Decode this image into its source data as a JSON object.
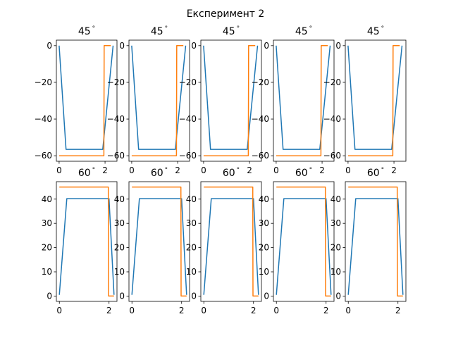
{
  "title": "Експеримент 2",
  "colors": {
    "series_0": "#1f77b4",
    "series_1": "#ff7f0e"
  },
  "chart_data": [
    {
      "row": 1,
      "type": "line",
      "title": "45",
      "title_degree": "°",
      "xlim": [
        -0.12,
        2.52
      ],
      "ylim": [
        -63,
        3
      ],
      "xticks": [
        0,
        2
      ],
      "xticklabels": [
        "0",
        "2"
      ],
      "yticks": [
        0,
        -20,
        -40,
        -60
      ],
      "yticklabels": [
        "0",
        "−20",
        "−40",
        "−60"
      ],
      "series": [
        {
          "values": [
            [
              0,
              0
            ],
            [
              0.3,
              -56.5
            ],
            [
              1.9,
              -56.5
            ],
            [
              2.35,
              0
            ]
          ]
        },
        {
          "values": [
            [
              0,
              -60
            ],
            [
              1.95,
              -60
            ],
            [
              1.96,
              0
            ],
            [
              2.25,
              0
            ]
          ]
        }
      ]
    },
    {
      "row": 2,
      "type": "line",
      "title": "60",
      "title_degree": "°",
      "xlim": [
        -0.12,
        2.32
      ],
      "ylim": [
        -2.2,
        47.2
      ],
      "xticks": [
        0,
        2
      ],
      "xticklabels": [
        "0",
        "2"
      ],
      "yticks": [
        0,
        10,
        20,
        30,
        40
      ],
      "yticklabels": [
        "0",
        "10",
        "20",
        "30",
        "40"
      ],
      "series": [
        {
          "values": [
            [
              0,
              0.5
            ],
            [
              0.3,
              40.2
            ],
            [
              2.0,
              40.2
            ],
            [
              2.2,
              0.5
            ]
          ]
        },
        {
          "values": [
            [
              0,
              45
            ],
            [
              1.97,
              45
            ],
            [
              1.98,
              0
            ],
            [
              2.2,
              0
            ]
          ]
        }
      ]
    }
  ]
}
